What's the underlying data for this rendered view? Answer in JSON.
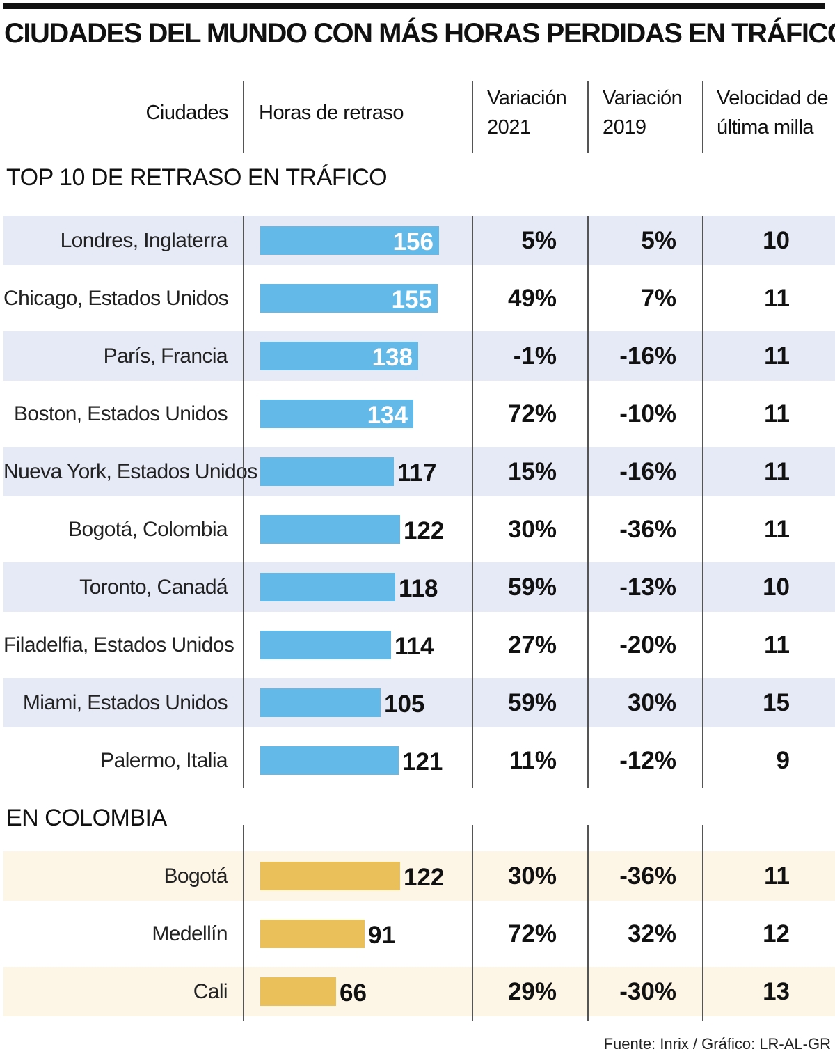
{
  "title": "CIUDADES DEL MUNDO CON MÁS HORAS PERDIDAS EN TRÁFICO",
  "headers": {
    "city": "Ciudades",
    "hours": "Horas de retraso",
    "var2021_line1": "Variación",
    "var2021_line2": "2021",
    "var2019_line1": "Variación",
    "var2019_line2": "2019",
    "speed_line1": "Velocidad de",
    "speed_line2": "última milla"
  },
  "section_top10": "TOP 10 DE RETRASO EN TRÁFICO",
  "section_colombia": "EN COLOMBIA",
  "source": "Fuente: Inrix / Gráfico: LR-AL-GR",
  "colors": {
    "top10_bar": "#63b9e8",
    "colombia_bar": "#e9c05a",
    "top10_shade": "#e6eaf6",
    "colombia_shade": "#fdf5e6"
  },
  "chart_data": [
    {
      "type": "table",
      "title": "TOP 10 DE RETRASO EN TRÁFICO",
      "columns": [
        "Ciudades",
        "Horas de retraso",
        "Variación 2021",
        "Variación 2019",
        "Velocidad de última milla"
      ],
      "rows": [
        {
          "city": "Londres, Inglaterra",
          "hours": 156,
          "hours_label": "156",
          "var2021": "5%",
          "var2019": "5%",
          "speed": "10"
        },
        {
          "city": "Chicago, Estados Unidos",
          "hours": 155,
          "hours_label": "155",
          "var2021": "49%",
          "var2019": "7%",
          "speed": "11"
        },
        {
          "city": "París, Francia",
          "hours": 138,
          "hours_label": "138",
          "var2021": "-1%",
          "var2019": "-16%",
          "speed": "11"
        },
        {
          "city": "Boston, Estados Unidos",
          "hours": 134,
          "hours_label": "134",
          "var2021": "72%",
          "var2019": "-10%",
          "speed": "11"
        },
        {
          "city": "Nueva York, Estados Unidos",
          "hours": 117,
          "hours_label": "117",
          "var2021": "15%",
          "var2019": "-16%",
          "speed": "11"
        },
        {
          "city": "Bogotá, Colombia",
          "hours": 122,
          "hours_label": "122",
          "var2021": "30%",
          "var2019": "-36%",
          "speed": "11"
        },
        {
          "city": "Toronto, Canadá",
          "hours": 118,
          "hours_label": "118",
          "var2021": "59%",
          "var2019": "-13%",
          "speed": "10"
        },
        {
          "city": "Filadelfia, Estados Unidos",
          "hours": 114,
          "hours_label": "114",
          "var2021": "27%",
          "var2019": "-20%",
          "speed": "11"
        },
        {
          "city": "Miami, Estados Unidos",
          "hours": 105,
          "hours_label": "105",
          "var2021": "59%",
          "var2019": "30%",
          "speed": "15"
        },
        {
          "city": "Palermo, Italia",
          "hours": 121,
          "hours_label": "121",
          "var2021": "11%",
          "var2019": "-12%",
          "speed": "9"
        }
      ]
    },
    {
      "type": "table",
      "title": "EN COLOMBIA",
      "columns": [
        "Ciudades",
        "Horas de retraso",
        "Variación 2021",
        "Variación 2019",
        "Velocidad de última milla"
      ],
      "rows": [
        {
          "city": "Bogotá",
          "hours": 122,
          "hours_label": "122",
          "var2021": "30%",
          "var2019": "-36%",
          "speed": "11"
        },
        {
          "city": "Medellín",
          "hours": 91,
          "hours_label": "91",
          "var2021": "72%",
          "var2019": "32%",
          "speed": "12"
        },
        {
          "city": "Cali",
          "hours": 66,
          "hours_label": "66",
          "var2021": "29%",
          "var2019": "-30%",
          "speed": "13"
        }
      ]
    }
  ]
}
